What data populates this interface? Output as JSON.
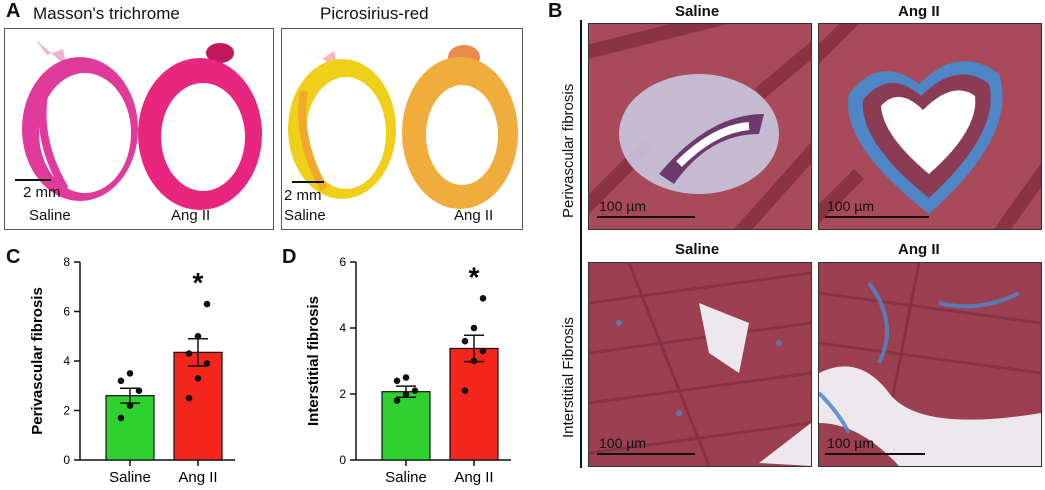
{
  "panel_a": {
    "letter": "A",
    "trichrome": {
      "title": "Masson's trichrome",
      "scale": "2 mm",
      "label_left": "Saline",
      "label_right": "Ang II"
    },
    "picrosirius": {
      "title": "Picrosirius-red",
      "scale": "2 mm",
      "label_left": "Saline",
      "label_right": "Ang II"
    }
  },
  "panel_b": {
    "letter": "B",
    "col_left": "Saline",
    "col_right": "Ang II",
    "row_top": "Perivascular fibrosis",
    "row_bottom": "Interstitial Fibrosis",
    "row2_left": "Saline",
    "row2_right": "Ang II",
    "scale": "100 µm",
    "colors": {
      "muscle": "#8e3846",
      "collagen": "#4f86c6",
      "background": "#f2eef0"
    }
  },
  "chart_data": [
    {
      "type": "bar",
      "panel": "C",
      "ylabel": "Perivascular fibrosis",
      "categories": [
        "Saline",
        "Ang II"
      ],
      "values": [
        2.6,
        4.35
      ],
      "errors": [
        0.3,
        0.55
      ],
      "points": [
        [
          1.7,
          2.2,
          2.8,
          3.2,
          3.5
        ],
        [
          2.5,
          3.3,
          3.9,
          4.3,
          5.0,
          6.3
        ]
      ],
      "ylim": [
        0,
        8
      ],
      "yticks": [
        0,
        2,
        4,
        6,
        8
      ],
      "colors": [
        "#2ed12e",
        "#f5261c"
      ],
      "annotation": "*"
    },
    {
      "type": "bar",
      "panel": "D",
      "ylabel": "Interstitial fibrosis",
      "categories": [
        "Saline",
        "Ang II"
      ],
      "values": [
        2.07,
        3.38
      ],
      "errors": [
        0.17,
        0.4
      ],
      "points": [
        [
          1.8,
          2.0,
          2.1,
          2.4,
          2.5
        ],
        [
          2.1,
          3.0,
          3.3,
          3.6,
          4.0,
          4.9
        ]
      ],
      "ylim": [
        0,
        6
      ],
      "yticks": [
        0,
        2,
        4,
        6
      ],
      "colors": [
        "#2ed12e",
        "#f5261c"
      ],
      "annotation": "*"
    }
  ]
}
